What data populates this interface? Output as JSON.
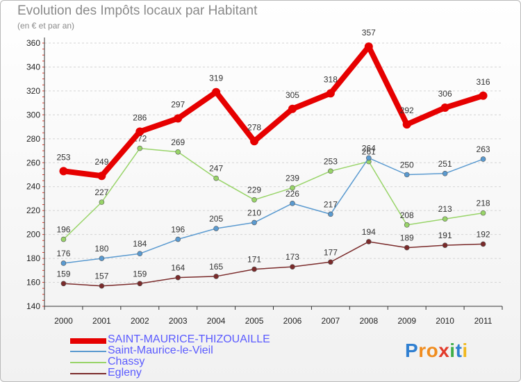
{
  "title": "Evolution des Impôts locaux par Habitant",
  "subtitle": "(en € et par an)",
  "logo": {
    "text": "Proxiti",
    "letters": [
      "P",
      "r",
      "o",
      "x",
      "i",
      "t",
      "i"
    ],
    "colors": [
      "#2f7fd1",
      "#f08c1e",
      "#f08c1e",
      "#e23a2a",
      "#3fae49",
      "#2f7fd1",
      "#f0b81e"
    ]
  },
  "chart_data": {
    "type": "line",
    "x": [
      "2000",
      "2001",
      "2002",
      "2003",
      "2004",
      "2005",
      "2006",
      "2007",
      "2008",
      "2009",
      "2010",
      "2011"
    ],
    "ylim": [
      140,
      360
    ],
    "yticks": [
      140,
      160,
      180,
      200,
      220,
      240,
      260,
      280,
      300,
      320,
      340,
      360
    ],
    "grid": "horizontal dashed",
    "legend_position": "bottom",
    "series": [
      {
        "name": "SAINT-MAURICE-THIZOUAILLE",
        "color": "#e60000",
        "width": 8,
        "marker": 6,
        "values": [
          253,
          249,
          286,
          297,
          319,
          278,
          305,
          318,
          357,
          292,
          306,
          316
        ]
      },
      {
        "name": "Saint-Maurice-le-Vieil",
        "color": "#5a9ad0",
        "width": 1.5,
        "marker": 3.5,
        "values": [
          176,
          180,
          184,
          196,
          205,
          210,
          226,
          217,
          264,
          250,
          251,
          263
        ]
      },
      {
        "name": "Chassy",
        "color": "#98d468",
        "width": 1.5,
        "marker": 3.5,
        "values": [
          196,
          227,
          272,
          269,
          247,
          229,
          239,
          253,
          261,
          208,
          213,
          218
        ]
      },
      {
        "name": "Egleny",
        "color": "#7a2a2a",
        "width": 1.5,
        "marker": 3.5,
        "values": [
          159,
          157,
          159,
          164,
          165,
          171,
          173,
          177,
          194,
          189,
          191,
          192
        ]
      }
    ]
  }
}
